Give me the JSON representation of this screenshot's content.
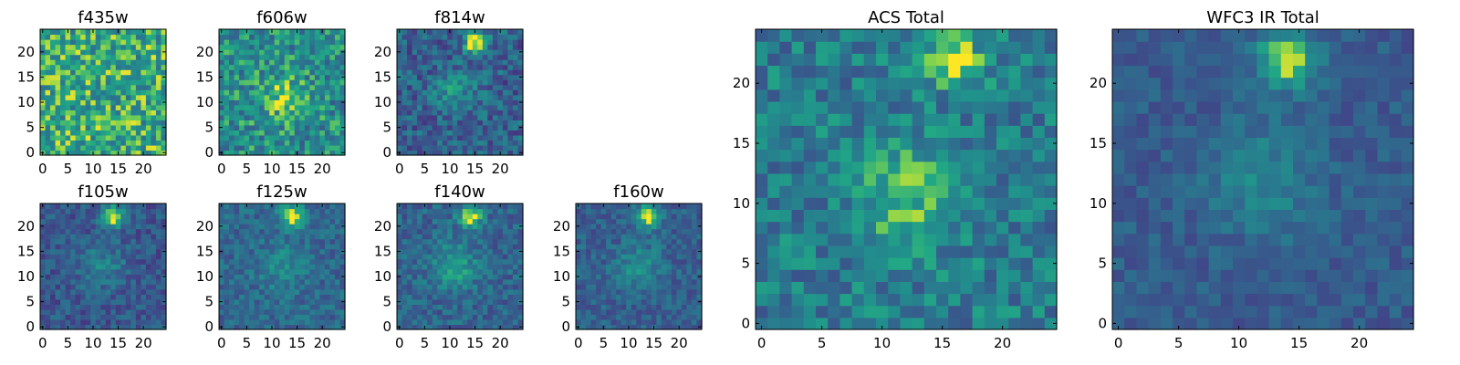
{
  "chart_data": [
    {
      "type": "heatmap",
      "title": "f435w",
      "grid": false,
      "colormap": "viridis",
      "size": 25,
      "xlim": [
        0,
        24
      ],
      "ylim": [
        0,
        24
      ],
      "xticks": [
        "0",
        "5",
        "10",
        "15",
        "20"
      ],
      "yticks": [
        "0",
        "5",
        "10",
        "15",
        "20"
      ],
      "mean_level": 0.72,
      "noise": 0.26,
      "bright_spots": []
    },
    {
      "type": "heatmap",
      "title": "f606w",
      "grid": false,
      "colormap": "viridis",
      "size": 25,
      "xlim": [
        0,
        24
      ],
      "ylim": [
        0,
        24
      ],
      "xticks": [
        "0",
        "5",
        "10",
        "15",
        "20"
      ],
      "yticks": [
        "0",
        "5",
        "10",
        "15",
        "20"
      ],
      "mean_level": 0.6,
      "noise": 0.24,
      "bright_spots": [
        {
          "x": 12,
          "y": 11,
          "value": 0.82
        }
      ]
    },
    {
      "type": "heatmap",
      "title": "f814w",
      "grid": false,
      "colormap": "viridis",
      "size": 25,
      "xlim": [
        0,
        24
      ],
      "ylim": [
        0,
        24
      ],
      "xticks": [
        "0",
        "5",
        "10",
        "15",
        "20"
      ],
      "yticks": [
        "0",
        "5",
        "10",
        "15",
        "20"
      ],
      "mean_level": 0.38,
      "noise": 0.2,
      "bright_spots": [
        {
          "x": 15,
          "y": 22,
          "value": 1.0
        },
        {
          "x": 11,
          "y": 12,
          "value": 0.6
        }
      ]
    },
    {
      "type": "heatmap",
      "title": "f105w",
      "grid": false,
      "colormap": "viridis",
      "size": 25,
      "xlim": [
        0,
        24
      ],
      "ylim": [
        0,
        24
      ],
      "xticks": [
        "0",
        "5",
        "10",
        "15",
        "20"
      ],
      "yticks": [
        "0",
        "5",
        "10",
        "15",
        "20"
      ],
      "mean_level": 0.34,
      "noise": 0.14,
      "bright_spots": [
        {
          "x": 14,
          "y": 22,
          "value": 1.0
        },
        {
          "x": 12,
          "y": 12,
          "value": 0.55
        }
      ]
    },
    {
      "type": "heatmap",
      "title": "f125w",
      "grid": false,
      "colormap": "viridis",
      "size": 25,
      "xlim": [
        0,
        24
      ],
      "ylim": [
        0,
        24
      ],
      "xticks": [
        "0",
        "5",
        "10",
        "15",
        "20"
      ],
      "yticks": [
        "0",
        "5",
        "10",
        "15",
        "20"
      ],
      "mean_level": 0.42,
      "noise": 0.14,
      "bright_spots": [
        {
          "x": 14,
          "y": 22,
          "value": 1.0
        },
        {
          "x": 12,
          "y": 12,
          "value": 0.62
        }
      ]
    },
    {
      "type": "heatmap",
      "title": "f140w",
      "grid": false,
      "colormap": "viridis",
      "size": 25,
      "xlim": [
        0,
        24
      ],
      "ylim": [
        0,
        24
      ],
      "xticks": [
        "0",
        "5",
        "10",
        "15",
        "20"
      ],
      "yticks": [
        "0",
        "5",
        "10",
        "15",
        "20"
      ],
      "mean_level": 0.4,
      "noise": 0.15,
      "bright_spots": [
        {
          "x": 14,
          "y": 22,
          "value": 1.0
        },
        {
          "x": 11,
          "y": 12,
          "value": 0.7
        }
      ]
    },
    {
      "type": "heatmap",
      "title": "f160w",
      "grid": false,
      "colormap": "viridis",
      "size": 25,
      "xlim": [
        0,
        24
      ],
      "ylim": [
        0,
        24
      ],
      "xticks": [
        "0",
        "5",
        "10",
        "15",
        "20"
      ],
      "yticks": [
        "0",
        "5",
        "10",
        "15",
        "20"
      ],
      "mean_level": 0.38,
      "noise": 0.13,
      "bright_spots": [
        {
          "x": 14,
          "y": 22,
          "value": 1.0
        },
        {
          "x": 12,
          "y": 12,
          "value": 0.62
        }
      ]
    },
    {
      "type": "heatmap",
      "title": "ACS Total",
      "grid": false,
      "colormap": "viridis",
      "size": 25,
      "xlim": [
        0,
        24
      ],
      "ylim": [
        0,
        24
      ],
      "xticks": [
        "0",
        "5",
        "10",
        "15",
        "20"
      ],
      "yticks": [
        "0",
        "5",
        "10",
        "15",
        "20"
      ],
      "mean_level": 0.52,
      "noise": 0.2,
      "bright_spots": [
        {
          "x": 16,
          "y": 22,
          "value": 1.0
        },
        {
          "x": 12,
          "y": 11,
          "value": 0.8
        }
      ]
    },
    {
      "type": "heatmap",
      "title": "WFC3 IR Total",
      "grid": false,
      "colormap": "viridis",
      "size": 25,
      "xlim": [
        0,
        24
      ],
      "ylim": [
        0,
        24
      ],
      "xticks": [
        "0",
        "5",
        "10",
        "15",
        "20"
      ],
      "yticks": [
        "0",
        "5",
        "10",
        "15",
        "20"
      ],
      "mean_level": 0.36,
      "noise": 0.1,
      "bright_spots": [
        {
          "x": 14,
          "y": 22,
          "value": 1.0
        },
        {
          "x": 12,
          "y": 12,
          "value": 0.58
        }
      ]
    }
  ]
}
